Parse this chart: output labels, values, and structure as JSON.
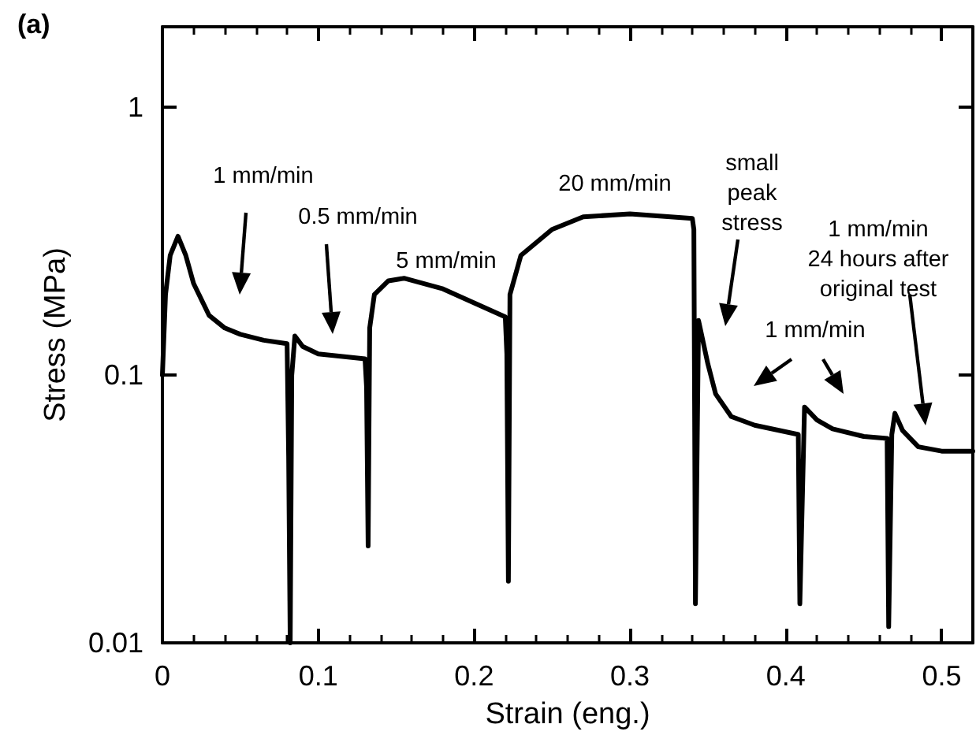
{
  "chart_data": {
    "type": "line",
    "title": "(a)",
    "xlabel": "Strain (eng.)",
    "ylabel": "Stress (MPa)",
    "x": [
      0,
      0.002,
      0.005,
      0.01,
      0.015,
      0.02,
      0.03,
      0.04,
      0.05,
      0.065,
      0.08,
      0.081,
      0.082,
      0.083,
      0.085,
      0.09,
      0.1,
      0.13,
      0.131,
      0.132,
      0.133,
      0.136,
      0.145,
      0.155,
      0.18,
      0.2,
      0.22,
      0.221,
      0.222,
      0.223,
      0.23,
      0.25,
      0.27,
      0.3,
      0.34,
      0.341,
      0.342,
      0.344,
      0.35,
      0.355,
      0.365,
      0.38,
      0.408,
      0.409,
      0.412,
      0.42,
      0.43,
      0.45,
      0.465,
      0.466,
      0.468,
      0.47,
      0.475,
      0.485,
      0.5,
      0.52
    ],
    "series": [
      {
        "color": "#000000",
        "values": [
          0.1,
          0.2,
          0.28,
          0.33,
          0.28,
          0.22,
          0.167,
          0.15,
          0.142,
          0.135,
          0.131,
          0.05,
          0.01,
          0.1,
          0.14,
          0.128,
          0.12,
          0.115,
          0.09,
          0.023,
          0.15,
          0.2,
          0.225,
          0.23,
          0.21,
          0.186,
          0.165,
          0.12,
          0.017,
          0.2,
          0.28,
          0.35,
          0.39,
          0.4,
          0.385,
          0.35,
          0.014,
          0.16,
          0.11,
          0.085,
          0.07,
          0.065,
          0.06,
          0.014,
          0.076,
          0.068,
          0.063,
          0.059,
          0.058,
          0.0115,
          0.06,
          0.072,
          0.062,
          0.054,
          0.052,
          0.052
        ]
      }
    ],
    "xlim": [
      0,
      0.52
    ],
    "xticks": [
      0,
      0.1,
      0.2,
      0.3,
      0.4,
      0.5
    ],
    "ylim": [
      0.01,
      2
    ],
    "yticks": [
      0.01,
      0.1,
      1
    ],
    "log": "y",
    "grid": false,
    "marker": "none",
    "line_style": "solid",
    "annotations": [
      "1 mm/min",
      "0.5 mm/min",
      "5 mm/min",
      "20 mm/min",
      "small\npeak\nstress",
      "1 mm/min",
      "1 mm/min\n24 hours after\noriginal test"
    ]
  }
}
